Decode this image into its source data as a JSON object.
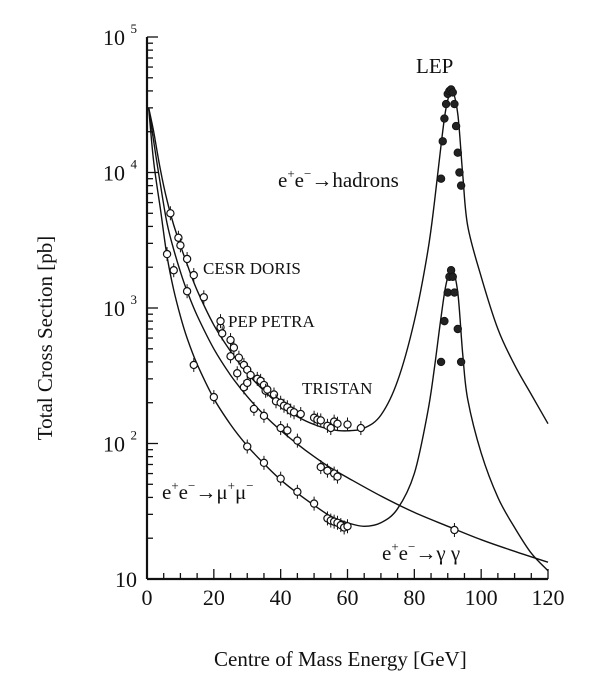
{
  "chart_data": {
    "type": "scatter",
    "xlabel": "Centre of Mass Energy  [GeV]",
    "ylabel": "Total Cross Section  [pb]",
    "xlim": [
      0,
      120
    ],
    "ylim": [
      10,
      100000
    ],
    "yscale": "log",
    "grid": false,
    "x_ticks": [
      0,
      20,
      40,
      60,
      80,
      100,
      120
    ],
    "y_ticks": [
      {
        "value": 10,
        "base": "10",
        "exp": ""
      },
      {
        "value": 100,
        "base": "10",
        "exp": "2"
      },
      {
        "value": 1000,
        "base": "10",
        "exp": "3"
      },
      {
        "value": 10000,
        "base": "10",
        "exp": "4"
      },
      {
        "value": 100000,
        "base": "10",
        "exp": "5"
      }
    ],
    "annotations": {
      "lep": "LEP",
      "cesr_doris": "CESR DORIS",
      "pep_petra": "PEP  PETRA",
      "tristan": "TRISTAN"
    },
    "process_labels": {
      "hadrons": {
        "ee": "e",
        "sup_plus": "+",
        "e2": "e",
        "sup_minus": "−",
        "arrow": "→",
        "final": "hadrons"
      },
      "mumu": {
        "ee": "e",
        "sup_plus": "+",
        "e2": "e",
        "sup_minus": "−",
        "arrow": "→",
        "mu1": "μ",
        "sup_plus2": "+",
        "mu2": "μ",
        "sup_minus2": "−"
      },
      "gammagamma": {
        "ee": "e",
        "sup_plus": "+",
        "e2": "e",
        "sup_minus": "−",
        "arrow": "→",
        "final": "γ γ"
      }
    },
    "series": [
      {
        "name": "e+e- → hadrons",
        "curve": [
          [
            0.5,
            30000
          ],
          [
            2,
            20000
          ],
          [
            4,
            10500
          ],
          [
            6,
            6200
          ],
          [
            8,
            4100
          ],
          [
            10,
            2900
          ],
          [
            12,
            2100
          ],
          [
            15,
            1350
          ],
          [
            20,
            750
          ],
          [
            25,
            480
          ],
          [
            30,
            330
          ],
          [
            35,
            245
          ],
          [
            40,
            190
          ],
          [
            45,
            158
          ],
          [
            50,
            138
          ],
          [
            55,
            127
          ],
          [
            60,
            124
          ],
          [
            65,
            130
          ],
          [
            70,
            162
          ],
          [
            75,
            290
          ],
          [
            80,
            800
          ],
          [
            84,
            2600
          ],
          [
            86,
            6000
          ],
          [
            88,
            16000
          ],
          [
            89.5,
            30000
          ],
          [
            91.2,
            40000
          ],
          [
            93,
            27000
          ],
          [
            94.5,
            9500
          ],
          [
            96,
            4000
          ],
          [
            100,
            1700
          ],
          [
            105,
            700
          ],
          [
            110,
            380
          ],
          [
            115,
            230
          ],
          [
            120,
            140
          ]
        ],
        "points": [
          [
            7,
            5000
          ],
          [
            9.4,
            3300
          ],
          [
            10,
            2900
          ],
          [
            12,
            2300
          ],
          [
            14,
            1750
          ],
          [
            22,
            720
          ],
          [
            22.5,
            650
          ],
          [
            25,
            580
          ],
          [
            26,
            510
          ],
          [
            27.5,
            430
          ],
          [
            29,
            380
          ],
          [
            30,
            350
          ],
          [
            31,
            320
          ],
          [
            33,
            300
          ],
          [
            34,
            290
          ],
          [
            35,
            270
          ],
          [
            35.5,
            245
          ],
          [
            36,
            250
          ],
          [
            38,
            230
          ],
          [
            38.6,
            205
          ],
          [
            40,
            200
          ],
          [
            41,
            190
          ],
          [
            42,
            185
          ],
          [
            43,
            175
          ],
          [
            44,
            170
          ],
          [
            46,
            165
          ],
          [
            50,
            155
          ],
          [
            51,
            150
          ],
          [
            52,
            148
          ],
          [
            54,
            135
          ],
          [
            55,
            130
          ],
          [
            56,
            145
          ],
          [
            57,
            140
          ],
          [
            60,
            138
          ],
          [
            64,
            130
          ]
        ],
        "lep_points": [
          [
            88,
            9000
          ],
          [
            88.5,
            17000
          ],
          [
            89,
            25000
          ],
          [
            89.5,
            32000
          ],
          [
            90,
            38000
          ],
          [
            90.5,
            40000
          ],
          [
            91,
            41000
          ],
          [
            91.5,
            39000
          ],
          [
            92,
            32000
          ],
          [
            92.5,
            22000
          ],
          [
            93,
            14000
          ],
          [
            93.5,
            10000
          ],
          [
            94,
            8000
          ]
        ]
      },
      {
        "name": "e+e- → μ+μ-",
        "curve": [
          [
            0.5,
            30000
          ],
          [
            2,
            12000
          ],
          [
            4,
            5400
          ],
          [
            6,
            2400
          ],
          [
            8,
            1360
          ],
          [
            10,
            870
          ],
          [
            12,
            600
          ],
          [
            15,
            385
          ],
          [
            20,
            215
          ],
          [
            25,
            138
          ],
          [
            30,
            96
          ],
          [
            35,
            71
          ],
          [
            40,
            54
          ],
          [
            45,
            43
          ],
          [
            50,
            35
          ],
          [
            55,
            29
          ],
          [
            60,
            26
          ],
          [
            65,
            24.5
          ],
          [
            70,
            26
          ],
          [
            75,
            33
          ],
          [
            80,
            60
          ],
          [
            84,
            170
          ],
          [
            86,
            360
          ],
          [
            88,
            860
          ],
          [
            89.5,
            1500
          ],
          [
            91.2,
            1950
          ],
          [
            93,
            1300
          ],
          [
            94.5,
            450
          ],
          [
            96,
            210
          ],
          [
            100,
            85
          ],
          [
            105,
            40
          ],
          [
            110,
            24
          ],
          [
            115,
            15.5
          ],
          [
            120,
            11.5
          ]
        ],
        "points": [
          [
            14,
            380
          ],
          [
            20,
            220
          ],
          [
            30,
            95
          ],
          [
            35,
            72
          ],
          [
            40,
            55
          ],
          [
            45,
            44
          ],
          [
            50,
            36
          ],
          [
            54,
            28
          ],
          [
            55,
            27
          ],
          [
            56,
            26.5
          ],
          [
            57,
            26
          ],
          [
            58,
            25
          ],
          [
            59,
            24
          ],
          [
            60,
            24.5
          ]
        ],
        "lep_points": [
          [
            88,
            400
          ],
          [
            89,
            800
          ],
          [
            90,
            1300
          ],
          [
            90.5,
            1700
          ],
          [
            91,
            1900
          ],
          [
            91.5,
            1700
          ],
          [
            92,
            1300
          ],
          [
            93,
            700
          ],
          [
            94,
            400
          ]
        ]
      },
      {
        "name": "e+e- → γγ",
        "curve": [
          [
            0.5,
            30000
          ],
          [
            2,
            17000
          ],
          [
            4,
            8200
          ],
          [
            6,
            4200
          ],
          [
            8,
            2700
          ],
          [
            10,
            1850
          ],
          [
            12,
            1330
          ],
          [
            15,
            880
          ],
          [
            20,
            500
          ],
          [
            25,
            320
          ],
          [
            30,
            222
          ],
          [
            35,
            163
          ],
          [
            40,
            125
          ],
          [
            45,
            99
          ],
          [
            50,
            80
          ],
          [
            55,
            66
          ],
          [
            60,
            56
          ],
          [
            70,
            41
          ],
          [
            80,
            31
          ],
          [
            90,
            24.5
          ],
          [
            100,
            19.5
          ],
          [
            110,
            16
          ],
          [
            120,
            13.3
          ]
        ],
        "points": [
          [
            6,
            2500
          ],
          [
            8,
            1900
          ],
          [
            12,
            1330
          ],
          [
            17,
            1200
          ],
          [
            22,
            800
          ],
          [
            25,
            440
          ],
          [
            27,
            330
          ],
          [
            29,
            260
          ],
          [
            30,
            280
          ],
          [
            32,
            180
          ],
          [
            35,
            160
          ],
          [
            40,
            130
          ],
          [
            42,
            125
          ],
          [
            45,
            105
          ],
          [
            52,
            67
          ],
          [
            54,
            63
          ],
          [
            56,
            60
          ],
          [
            57,
            57
          ],
          [
            92,
            23
          ]
        ]
      }
    ]
  }
}
